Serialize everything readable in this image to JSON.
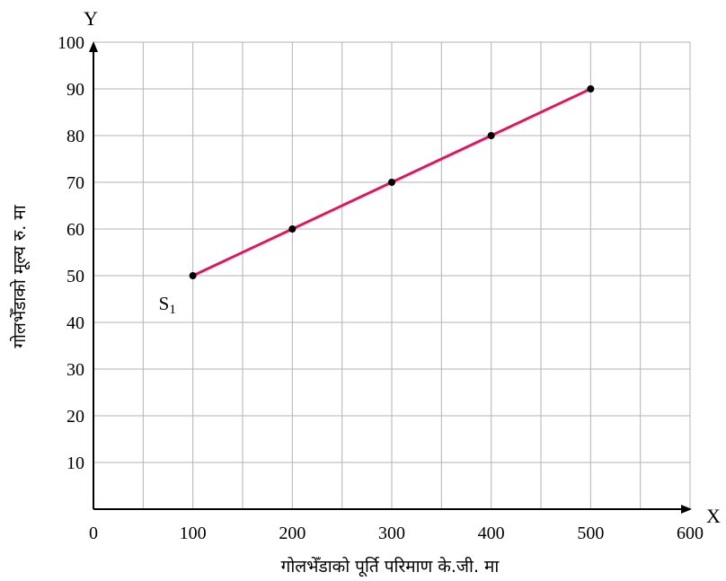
{
  "chart_data": {
    "type": "line",
    "x_axis_letter": "X",
    "y_axis_letter": "Y",
    "xlabel": "गोलभेँडाको पूर्ति परिमाण के.जी. मा",
    "ylabel": "गोलभेँडाको मूल्य रु. मा",
    "x_ticks": [
      "0",
      "100",
      "200",
      "300",
      "400",
      "500",
      "600"
    ],
    "y_ticks": [
      "10",
      "20",
      "30",
      "40",
      "50",
      "60",
      "70",
      "80",
      "90",
      "100"
    ],
    "xlim": [
      0,
      600
    ],
    "ylim": [
      0,
      100
    ],
    "grid": true,
    "series": [
      {
        "name": "S1",
        "color": "#e0175f",
        "x": [
          100,
          200,
          300,
          400,
          500
        ],
        "y": [
          50,
          60,
          70,
          80,
          90
        ]
      }
    ]
  }
}
